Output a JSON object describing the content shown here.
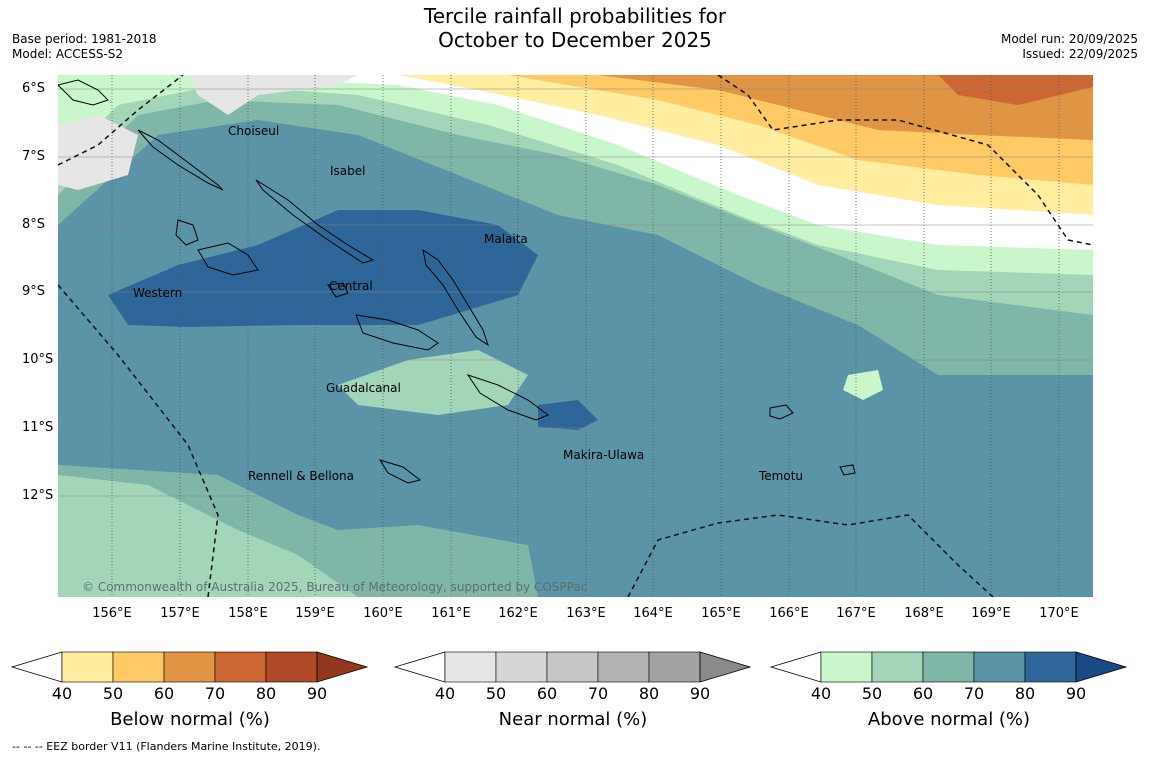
{
  "header": {
    "title_line1": "Tercile rainfall probabilities for",
    "title_line2": "October to December 2025",
    "base_period": "Base period: 1981-2018",
    "model": "Model: ACCESS-S2",
    "model_run": "Model run: 20/09/2025",
    "issued": "Issued: 22/09/2025"
  },
  "map": {
    "lat_labels": [
      "6°S",
      "7°S",
      "8°S",
      "9°S",
      "10°S",
      "11°S",
      "12°S"
    ],
    "lon_labels": [
      "156°E",
      "157°E",
      "158°E",
      "159°E",
      "160°E",
      "161°E",
      "162°E",
      "163°E",
      "164°E",
      "165°E",
      "166°E",
      "167°E",
      "168°E",
      "169°E",
      "170°E"
    ],
    "places": {
      "choiseul": "Choiseul",
      "isabel": "Isabel",
      "malaita": "Malaita",
      "western": "Western",
      "central": "Central",
      "guadalcanal": "Guadalcanal",
      "makira": "Makira-Ulawa",
      "rennell": "Rennell & Bellona",
      "temotu": "Temotu"
    },
    "copyright": "© Commonwealth of Australia 2025, Bureau of Meteorology, supported by COSPPac"
  },
  "legends": {
    "ticks": [
      "40",
      "50",
      "60",
      "70",
      "80",
      "90"
    ],
    "below": {
      "title": "Below normal (%)",
      "colors": [
        "#ffeea0",
        "#ffc966",
        "#e09545",
        "#cc6633",
        "#b04a28",
        "#923820"
      ]
    },
    "near": {
      "title": "Near normal (%)",
      "colors": [
        "#e6e6e6",
        "#d6d6d6",
        "#c6c6c6",
        "#b4b4b4",
        "#a2a2a2",
        "#8a8a8a"
      ]
    },
    "above": {
      "title": "Above normal (%)",
      "colors": [
        "#c9f7cb",
        "#a3d6b8",
        "#7fb6a8",
        "#5b94a6",
        "#2f6699",
        "#1a4a85"
      ]
    }
  },
  "footer": {
    "eez_note": "--  --  -- EEZ border V11 (Flanders Marine Institute, 2019)."
  }
}
